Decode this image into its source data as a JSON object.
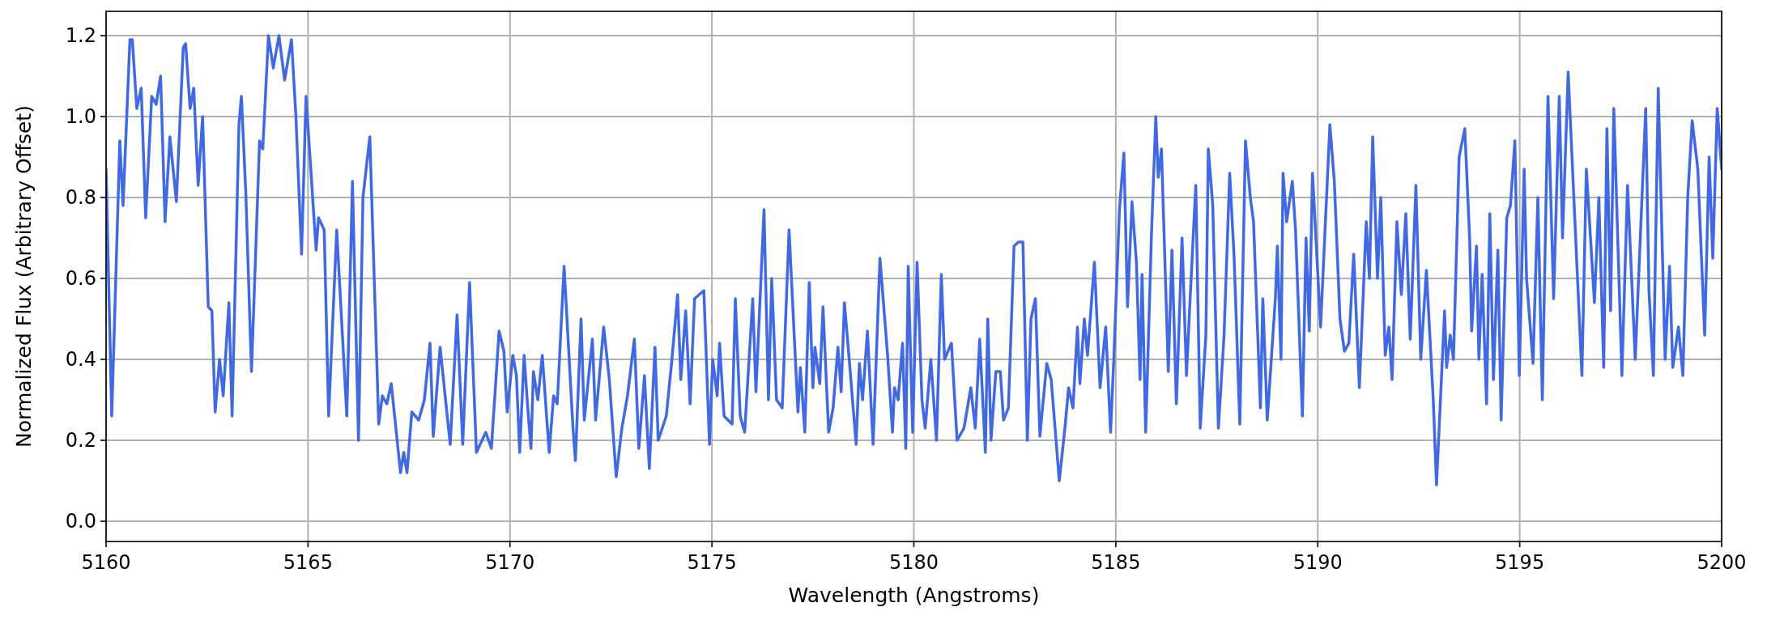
{
  "chart_data": {
    "type": "line",
    "xlabel": "Wavelength (Angstroms)",
    "ylabel": "Normalized Flux (Arbitrary Offset)",
    "xlim": [
      5160,
      5200
    ],
    "ylim": [
      -0.05,
      1.26
    ],
    "xticks": [
      5160,
      5165,
      5170,
      5175,
      5180,
      5185,
      5190,
      5195,
      5200
    ],
    "yticks": [
      {
        "value": 0,
        "label": "0.0"
      },
      {
        "value": 0.2,
        "label": "0.2"
      },
      {
        "value": 0.4,
        "label": "0.4"
      },
      {
        "value": 0.6,
        "label": "0.6"
      },
      {
        "value": 0.8,
        "label": "0.8"
      },
      {
        "value": 1.0,
        "label": "1.0"
      },
      {
        "value": 1.2,
        "label": "1.2"
      }
    ],
    "grid": true,
    "x": [
      5160.0,
      5160.14,
      5160.34,
      5160.42,
      5160.59,
      5160.65,
      5160.76,
      5160.87,
      5160.98,
      5161.13,
      5161.24,
      5161.35,
      5161.46,
      5161.58,
      5161.74,
      5161.91,
      5161.97,
      5162.08,
      5162.17,
      5162.28,
      5162.39,
      5162.53,
      5162.62,
      5162.7,
      5162.81,
      5162.9,
      5163.04,
      5163.12,
      5163.29,
      5163.35,
      5163.46,
      5163.6,
      5163.8,
      5163.88,
      5164.02,
      5164.14,
      5164.28,
      5164.42,
      5164.59,
      5164.7,
      5164.84,
      5164.95,
      5165.2,
      5165.26,
      5165.4,
      5165.51,
      5165.71,
      5165.96,
      5166.1,
      5166.25,
      5166.36,
      5166.53,
      5166.75,
      5166.84,
      5166.95,
      5167.06,
      5167.29,
      5167.37,
      5167.45,
      5167.57,
      5167.74,
      5167.88,
      5168.02,
      5168.1,
      5168.27,
      5168.52,
      5168.69,
      5168.83,
      5169.0,
      5169.17,
      5169.4,
      5169.54,
      5169.73,
      5169.85,
      5169.93,
      5170.07,
      5170.16,
      5170.24,
      5170.35,
      5170.44,
      5170.52,
      5170.58,
      5170.69,
      5170.8,
      5170.97,
      5171.08,
      5171.17,
      5171.34,
      5171.56,
      5171.62,
      5171.76,
      5171.84,
      5172.04,
      5172.12,
      5172.32,
      5172.46,
      5172.63,
      5172.77,
      5172.91,
      5173.08,
      5173.19,
      5173.33,
      5173.45,
      5173.59,
      5173.67,
      5173.87,
      5174.01,
      5174.15,
      5174.23,
      5174.35,
      5174.46,
      5174.57,
      5174.8,
      5174.94,
      5175.02,
      5175.13,
      5175.19,
      5175.3,
      5175.5,
      5175.58,
      5175.7,
      5175.81,
      5175.92,
      5176.01,
      5176.09,
      5176.29,
      5176.4,
      5176.48,
      5176.6,
      5176.74,
      5176.91,
      5177.13,
      5177.19,
      5177.3,
      5177.41,
      5177.5,
      5177.55,
      5177.67,
      5177.75,
      5177.89,
      5178.0,
      5178.12,
      5178.2,
      5178.28,
      5178.4,
      5178.57,
      5178.65,
      5178.73,
      5178.85,
      5178.99,
      5179.16,
      5179.35,
      5179.47,
      5179.52,
      5179.61,
      5179.72,
      5179.8,
      5179.86,
      5179.97,
      5180.08,
      5180.2,
      5180.28,
      5180.42,
      5180.56,
      5180.68,
      5180.76,
      5180.93,
      5181.07,
      5181.24,
      5181.41,
      5181.52,
      5181.63,
      5181.77,
      5181.83,
      5181.91,
      5182.03,
      5182.14,
      5182.22,
      5182.34,
      5182.48,
      5182.59,
      5182.7,
      5182.81,
      5182.9,
      5183.01,
      5183.12,
      5183.29,
      5183.4,
      5183.6,
      5183.74,
      5183.83,
      5183.94,
      5184.05,
      5184.11,
      5184.22,
      5184.3,
      5184.47,
      5184.61,
      5184.75,
      5184.87,
      5184.95,
      5185.09,
      5185.2,
      5185.29,
      5185.4,
      5185.51,
      5185.6,
      5185.65,
      5185.74,
      5185.88,
      5185.99,
      5186.05,
      5186.13,
      5186.3,
      5186.39,
      5186.5,
      5186.64,
      5186.75,
      5186.84,
      5186.98,
      5187.09,
      5187.23,
      5187.29,
      5187.4,
      5187.54,
      5187.68,
      5187.82,
      5187.93,
      5188.07,
      5188.21,
      5188.33,
      5188.41,
      5188.58,
      5188.64,
      5188.75,
      5188.95,
      5189.0,
      5189.09,
      5189.14,
      5189.23,
      5189.37,
      5189.45,
      5189.62,
      5189.71,
      5189.79,
      5189.87,
      5190.07,
      5190.3,
      5190.41,
      5190.55,
      5190.66,
      5190.77,
      5190.89,
      5191.03,
      5191.2,
      5191.28,
      5191.36,
      5191.48,
      5191.56,
      5191.67,
      5191.76,
      5191.84,
      5191.96,
      5192.07,
      5192.18,
      5192.29,
      5192.43,
      5192.55,
      5192.69,
      5192.86,
      5192.94,
      5193.14,
      5193.19,
      5193.28,
      5193.36,
      5193.5,
      5193.64,
      5193.76,
      5193.81,
      5193.93,
      5193.99,
      5194.07,
      5194.18,
      5194.26,
      5194.35,
      5194.46,
      5194.54,
      5194.68,
      5194.77,
      5194.88,
      5194.99,
      5195.11,
      5195.17,
      5195.33,
      5195.45,
      5195.56,
      5195.7,
      5195.84,
      5195.98,
      5196.06,
      5196.2,
      5196.54,
      5196.65,
      5196.85,
      5196.96,
      5197.08,
      5197.16,
      5197.25,
      5197.33,
      5197.53,
      5197.67,
      5197.86,
      5198.12,
      5198.2,
      5198.31,
      5198.43,
      5198.6,
      5198.71,
      5198.79,
      5198.93,
      5199.04,
      5199.16,
      5199.27,
      5199.41,
      5199.58,
      5199.69,
      5199.78,
      5199.89,
      5200.0
    ],
    "series": [
      {
        "color": "#4169e1",
        "values": [
          0.87,
          0.26,
          0.94,
          0.78,
          1.19,
          1.19,
          1.02,
          1.07,
          0.75,
          1.05,
          1.03,
          1.1,
          0.74,
          0.95,
          0.79,
          1.17,
          1.18,
          1.02,
          1.07,
          0.83,
          1.0,
          0.53,
          0.52,
          0.27,
          0.4,
          0.31,
          0.54,
          0.26,
          0.98,
          1.05,
          0.81,
          0.37,
          0.94,
          0.92,
          1.2,
          1.12,
          1.2,
          1.09,
          1.19,
          1.0,
          0.66,
          1.05,
          0.67,
          0.75,
          0.72,
          0.26,
          0.72,
          0.26,
          0.84,
          0.2,
          0.8,
          0.95,
          0.24,
          0.31,
          0.29,
          0.34,
          0.12,
          0.17,
          0.12,
          0.27,
          0.25,
          0.3,
          0.44,
          0.21,
          0.43,
          0.19,
          0.51,
          0.19,
          0.59,
          0.17,
          0.22,
          0.18,
          0.47,
          0.42,
          0.27,
          0.41,
          0.36,
          0.17,
          0.41,
          0.28,
          0.18,
          0.37,
          0.3,
          0.41,
          0.17,
          0.31,
          0.29,
          0.63,
          0.23,
          0.15,
          0.5,
          0.25,
          0.45,
          0.25,
          0.48,
          0.35,
          0.11,
          0.23,
          0.31,
          0.45,
          0.18,
          0.36,
          0.13,
          0.43,
          0.2,
          0.26,
          0.4,
          0.56,
          0.35,
          0.52,
          0.29,
          0.55,
          0.57,
          0.19,
          0.4,
          0.31,
          0.44,
          0.26,
          0.24,
          0.55,
          0.26,
          0.22,
          0.4,
          0.55,
          0.32,
          0.77,
          0.3,
          0.6,
          0.3,
          0.28,
          0.72,
          0.27,
          0.38,
          0.22,
          0.59,
          0.33,
          0.43,
          0.34,
          0.53,
          0.22,
          0.28,
          0.43,
          0.32,
          0.54,
          0.4,
          0.19,
          0.39,
          0.3,
          0.47,
          0.19,
          0.65,
          0.41,
          0.22,
          0.33,
          0.3,
          0.44,
          0.18,
          0.63,
          0.22,
          0.64,
          0.3,
          0.23,
          0.4,
          0.2,
          0.61,
          0.4,
          0.44,
          0.2,
          0.23,
          0.33,
          0.23,
          0.45,
          0.17,
          0.5,
          0.2,
          0.37,
          0.37,
          0.25,
          0.28,
          0.68,
          0.69,
          0.69,
          0.2,
          0.5,
          0.55,
          0.21,
          0.39,
          0.35,
          0.1,
          0.23,
          0.33,
          0.28,
          0.48,
          0.34,
          0.5,
          0.41,
          0.64,
          0.33,
          0.48,
          0.22,
          0.4,
          0.77,
          0.91,
          0.53,
          0.79,
          0.64,
          0.35,
          0.61,
          0.22,
          0.7,
          1.0,
          0.85,
          0.92,
          0.37,
          0.67,
          0.29,
          0.7,
          0.36,
          0.55,
          0.83,
          0.23,
          0.46,
          0.92,
          0.78,
          0.23,
          0.46,
          0.86,
          0.65,
          0.24,
          0.94,
          0.8,
          0.74,
          0.28,
          0.55,
          0.25,
          0.55,
          0.68,
          0.4,
          0.86,
          0.74,
          0.84,
          0.72,
          0.26,
          0.7,
          0.47,
          0.86,
          0.48,
          0.98,
          0.84,
          0.5,
          0.42,
          0.44,
          0.66,
          0.33,
          0.74,
          0.6,
          0.95,
          0.6,
          0.8,
          0.41,
          0.48,
          0.35,
          0.74,
          0.56,
          0.76,
          0.45,
          0.83,
          0.4,
          0.62,
          0.3,
          0.09,
          0.52,
          0.38,
          0.46,
          0.4,
          0.9,
          0.97,
          0.7,
          0.47,
          0.68,
          0.4,
          0.61,
          0.29,
          0.76,
          0.35,
          0.67,
          0.25,
          0.75,
          0.78,
          0.94,
          0.36,
          0.87,
          0.6,
          0.39,
          0.8,
          0.3,
          1.05,
          0.55,
          1.05,
          0.7,
          1.11,
          0.36,
          0.87,
          0.54,
          0.8,
          0.38,
          0.97,
          0.52,
          1.02,
          0.36,
          0.83,
          0.4,
          1.02,
          0.57,
          0.36,
          1.07,
          0.4,
          0.63,
          0.38,
          0.48,
          0.36,
          0.8,
          0.99,
          0.87,
          0.46,
          0.9,
          0.65,
          1.02,
          0.87
        ]
      }
    ]
  }
}
